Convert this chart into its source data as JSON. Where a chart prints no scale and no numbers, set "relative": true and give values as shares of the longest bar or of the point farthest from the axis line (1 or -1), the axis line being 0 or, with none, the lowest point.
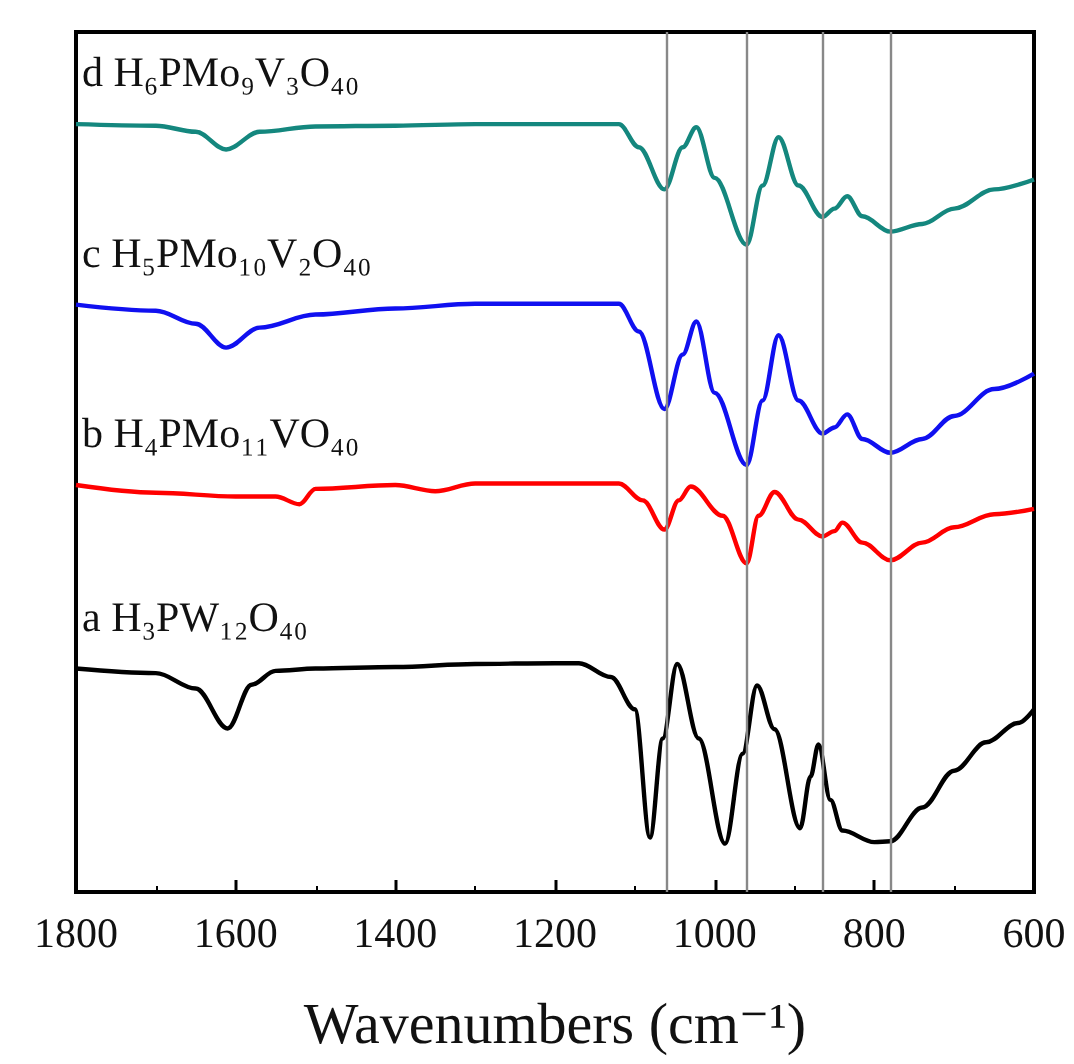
{
  "chart_data": {
    "type": "line",
    "relative": true,
    "xlabel": "Wavenumbers (cm⁻¹)",
    "xlim": [
      1800,
      600
    ],
    "xticks": [
      1800,
      1600,
      1400,
      1200,
      1000,
      800,
      600
    ],
    "grid": false,
    "legend": false,
    "marker": "none",
    "line_style": "solid",
    "series": [
      {
        "name": "d H₆PMo₉V₃O₄₀",
        "color": "#14877e",
        "x": [
          1800,
          1700,
          1650,
          1612,
          1570,
          1500,
          1400,
          1300,
          1200,
          1120,
          1095,
          1063,
          1040,
          1023,
          1000,
          960,
          940,
          920,
          895,
          865,
          850,
          834,
          815,
          780,
          740,
          700,
          650,
          600
        ],
        "values": [
          1.0,
          0.998,
          0.99,
          0.967,
          0.99,
          0.997,
          0.998,
          1.0,
          1.0,
          1.0,
          0.97,
          0.915,
          0.97,
          0.996,
          0.93,
          0.843,
          0.92,
          0.983,
          0.92,
          0.879,
          0.89,
          0.906,
          0.88,
          0.86,
          0.87,
          0.89,
          0.915,
          0.928
        ]
      },
      {
        "name": "c H₅PMo₁₀V₂O₄₀",
        "color": "#1010f0",
        "x": [
          1800,
          1700,
          1650,
          1612,
          1570,
          1500,
          1400,
          1300,
          1200,
          1120,
          1095,
          1063,
          1040,
          1023,
          1000,
          960,
          940,
          920,
          895,
          865,
          850,
          834,
          815,
          780,
          740,
          700,
          650,
          600
        ],
        "values": [
          0.765,
          0.757,
          0.74,
          0.709,
          0.735,
          0.752,
          0.76,
          0.766,
          0.766,
          0.766,
          0.73,
          0.629,
          0.7,
          0.743,
          0.65,
          0.556,
          0.64,
          0.725,
          0.64,
          0.597,
          0.605,
          0.622,
          0.59,
          0.572,
          0.59,
          0.62,
          0.655,
          0.675
        ]
      },
      {
        "name": "b H₄PMo₁₁VO₄₀",
        "color": "#ff0000",
        "x": [
          1800,
          1700,
          1600,
          1550,
          1520,
          1500,
          1400,
          1350,
          1300,
          1200,
          1120,
          1090,
          1063,
          1045,
          1030,
          990,
          960,
          945,
          925,
          895,
          865,
          850,
          840,
          815,
          780,
          740,
          700,
          650,
          600
        ],
        "values": [
          0.53,
          0.52,
          0.515,
          0.515,
          0.505,
          0.525,
          0.53,
          0.522,
          0.532,
          0.532,
          0.532,
          0.51,
          0.472,
          0.51,
          0.528,
          0.49,
          0.428,
          0.49,
          0.521,
          0.485,
          0.463,
          0.47,
          0.481,
          0.455,
          0.432,
          0.455,
          0.475,
          0.492,
          0.499
        ]
      },
      {
        "name": "a H₃PW₁₂O₄₀",
        "color": "#000000",
        "x": [
          1800,
          1700,
          1650,
          1610,
          1580,
          1550,
          1500,
          1400,
          1300,
          1200,
          1170,
          1130,
          1100,
          1081,
          1065,
          1047,
          1020,
          987,
          965,
          947,
          925,
          893,
          880,
          870,
          855,
          840,
          800,
          780,
          740,
          700,
          660,
          620,
          600
        ],
        "values": [
          0.291,
          0.285,
          0.265,
          0.213,
          0.27,
          0.288,
          0.291,
          0.293,
          0.297,
          0.298,
          0.298,
          0.28,
          0.238,
          0.071,
          0.2,
          0.297,
          0.2,
          0.063,
          0.18,
          0.269,
          0.212,
          0.083,
          0.15,
          0.192,
          0.12,
          0.08,
          0.065,
          0.066,
          0.11,
          0.158,
          0.195,
          0.22,
          0.238
        ]
      }
    ],
    "ref_lines": [
      {
        "axis": "x",
        "value": 1060,
        "color": "#888888"
      },
      {
        "axis": "x",
        "value": 960,
        "color": "#888888"
      },
      {
        "axis": "x",
        "value": 865,
        "color": "#888888"
      },
      {
        "axis": "x",
        "value": 780,
        "color": "#888888"
      }
    ]
  }
}
